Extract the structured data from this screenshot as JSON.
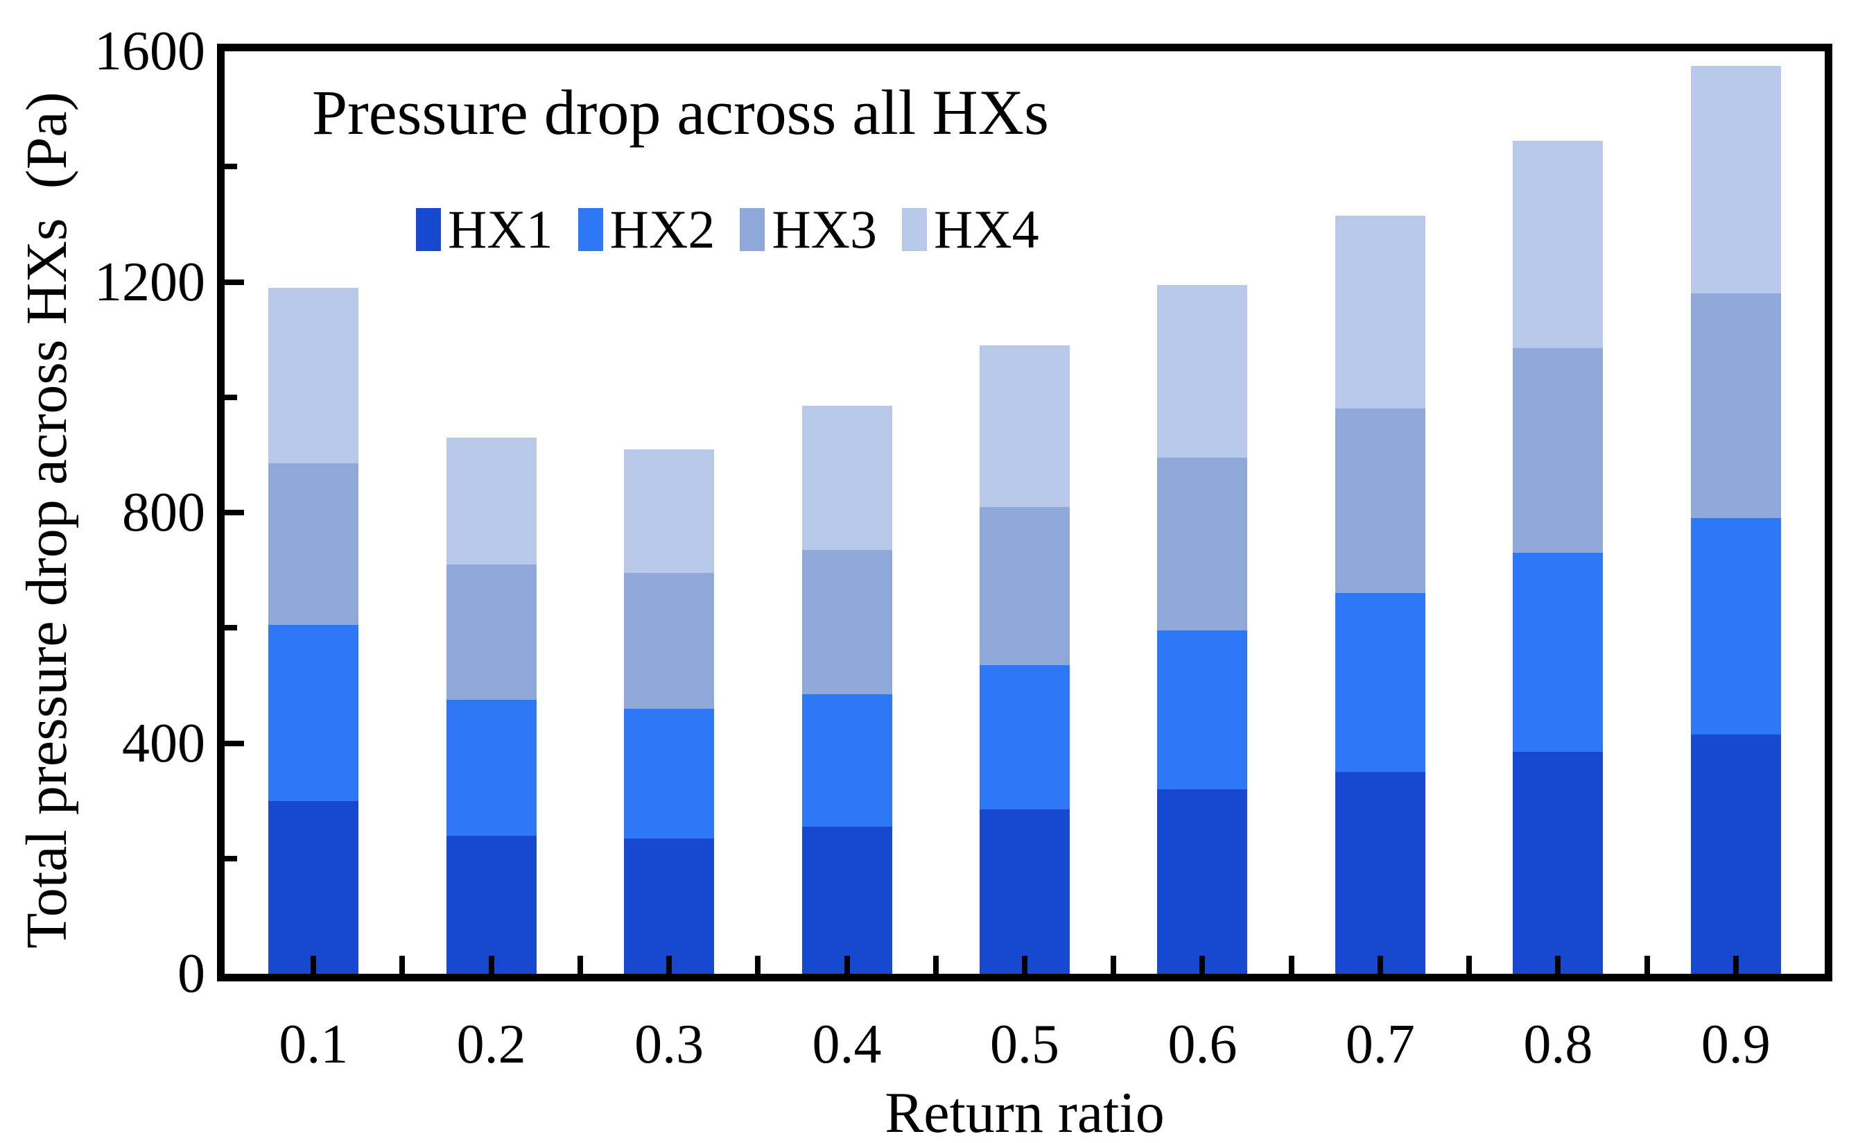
{
  "figure": {
    "title": "Pressure drop across all HXs",
    "x_axis_label": "Return ratio",
    "y_axis_label": "Total pressure drop across HXs  (Pa)"
  },
  "chart_data": {
    "type": "bar",
    "stacked": true,
    "title": "Pressure drop across all HXs",
    "xlabel": "Return ratio",
    "ylabel": "Total pressure drop across HXs (Pa)",
    "categories": [
      "0.1",
      "0.2",
      "0.3",
      "0.4",
      "0.5",
      "0.6",
      "0.7",
      "0.8",
      "0.9"
    ],
    "series": [
      {
        "name": "HX1",
        "color": "#1648D0",
        "values": [
          300,
          240,
          235,
          255,
          285,
          320,
          350,
          385,
          415
        ]
      },
      {
        "name": "HX2",
        "color": "#2E78F8",
        "values": [
          305,
          235,
          225,
          230,
          250,
          275,
          310,
          345,
          375
        ]
      },
      {
        "name": "HX3",
        "color": "#8FA8DA",
        "values": [
          280,
          235,
          235,
          250,
          275,
          300,
          320,
          355,
          390
        ]
      },
      {
        "name": "HX4",
        "color": "#B7C8E8",
        "values": [
          305,
          220,
          215,
          250,
          280,
          300,
          335,
          360,
          395
        ]
      }
    ],
    "stack_totals": [
      1190,
      930,
      910,
      985,
      1090,
      1195,
      1315,
      1445,
      1575
    ],
    "ylim": [
      0,
      1600
    ],
    "y_tick_labels": [
      "0",
      "400",
      "800",
      "1200",
      "1600"
    ],
    "y_major_tick_step": 400,
    "y_minor_tick_step": 200,
    "legend_position": "top-center-inside",
    "legend_order": [
      "HX1",
      "HX2",
      "HX3",
      "HX4"
    ],
    "grid": false,
    "frame_color": "#000000",
    "background_color": "#FFFFFF"
  }
}
